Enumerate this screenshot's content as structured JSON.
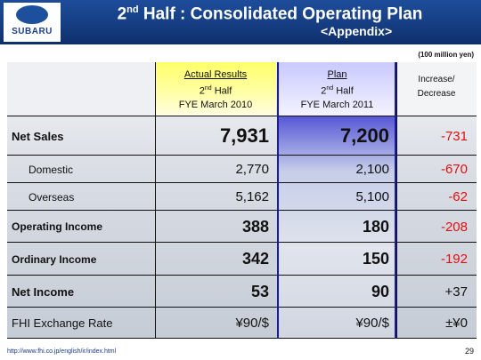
{
  "header": {
    "logo_text": "SUBARU",
    "title_pre": "2",
    "title_sup": "nd",
    "title_post": " Half : Consolidated Operating Plan",
    "subtitle": "<Appendix>"
  },
  "unit_note": "(100 million yen)",
  "columns": {
    "actual": {
      "line1": "Actual Results",
      "line2_pre": "2",
      "line2_sup": "nd",
      "line2_post": " Half",
      "line3": "FYE March 2010"
    },
    "plan": {
      "line1": "Plan",
      "line2_pre": "2",
      "line2_sup": "nd",
      "line2_post": " Half",
      "line3": "FYE March 2011"
    },
    "increase": {
      "line1": "Increase/",
      "line2": "Decrease"
    }
  },
  "rows": [
    {
      "label": "Net Sales",
      "actual": "7,931",
      "plan": "7,200",
      "change": "-731"
    },
    {
      "label": "Domestic",
      "actual": "2,770",
      "plan": "2,100",
      "change": "-670"
    },
    {
      "label": "Overseas",
      "actual": "5,162",
      "plan": "5,100",
      "change": "-62"
    },
    {
      "label": "Operating Income",
      "actual": "388",
      "plan": "180",
      "change": "-208"
    },
    {
      "label": "Ordinary Income",
      "actual": "342",
      "plan": "150",
      "change": "-192"
    },
    {
      "label": "Net Income",
      "actual": "53",
      "plan": "90",
      "change": "+37"
    },
    {
      "label": "FHI Exchange Rate",
      "actual": "¥90/$",
      "plan": "¥90/$",
      "change": "±¥0"
    }
  ],
  "footer": {
    "url": "http://www.fhi.co.jp/english/ir/index.html",
    "page_number": "29"
  },
  "colors": {
    "header_blue": "#153c80",
    "negative_red": "#e01010",
    "plan_border": "#1a1aa8",
    "actual_highlight": "#ffff9e"
  }
}
